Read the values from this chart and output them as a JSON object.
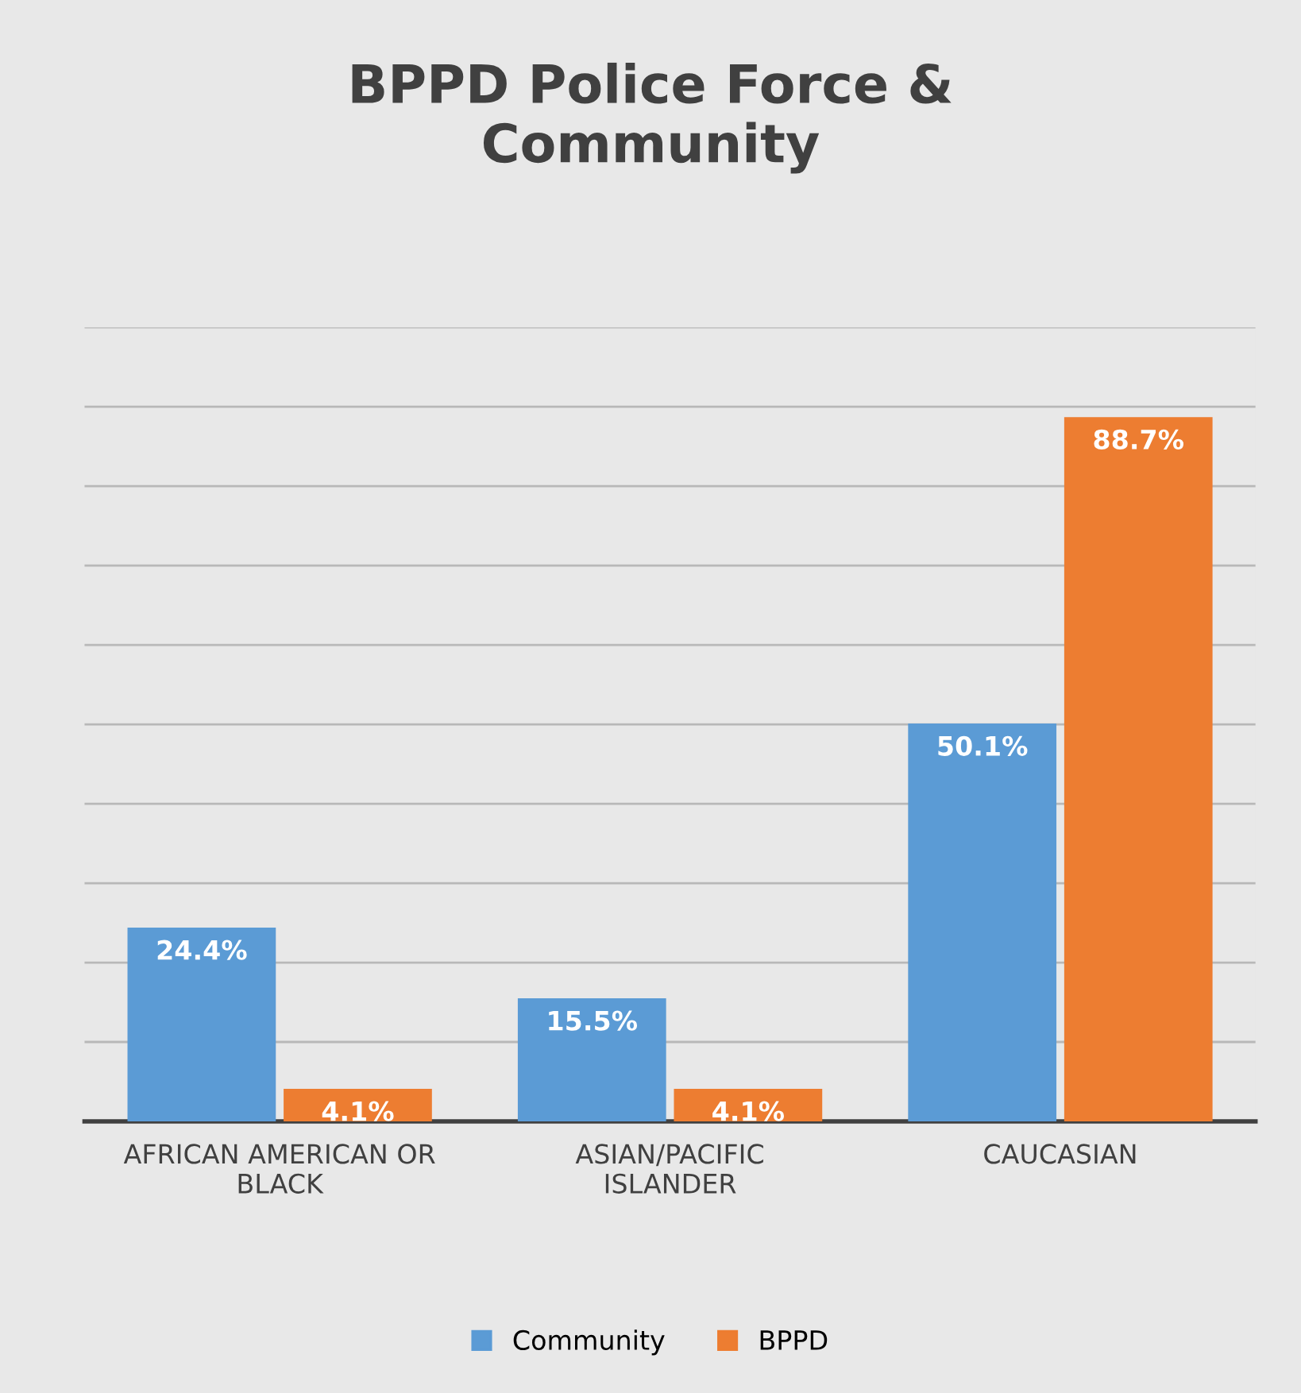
{
  "chart_data": {
    "type": "bar",
    "title": "BPPD Police Force &\nCommunity",
    "categories": [
      "AFRICAN AMERICAN OR\nBLACK",
      "ASIAN/PACIFIC\nISLANDER",
      "CAUCASIAN"
    ],
    "series": [
      {
        "name": "Community",
        "color": "#5b9bd5",
        "values": [
          24.4,
          15.5,
          50.1
        ],
        "value_labels": [
          "24.4%",
          "15.5%",
          "50.1%"
        ]
      },
      {
        "name": "BPPD",
        "color": "#ed7d31",
        "values": [
          4.1,
          4.1,
          88.7
        ],
        "value_labels": [
          "4.1%",
          "4.1%",
          "88.7%"
        ]
      }
    ],
    "ylim": [
      0,
      100
    ],
    "yticks": [
      {
        "value": 0,
        "label": null
      },
      {
        "value": 10,
        "label": null
      },
      {
        "value": 20,
        "label": null
      },
      {
        "value": 30,
        "label": null
      },
      {
        "value": 40,
        "label": null
      },
      {
        "value": 50,
        "label": null
      },
      {
        "value": 60,
        "label": null
      },
      {
        "value": 70,
        "label": null
      },
      {
        "value": 80,
        "label": null
      },
      {
        "value": 90,
        "label": null
      },
      {
        "value": 100,
        "label": null
      }
    ],
    "tick_labels": "x",
    "grid": "y",
    "legend": "bottom"
  }
}
